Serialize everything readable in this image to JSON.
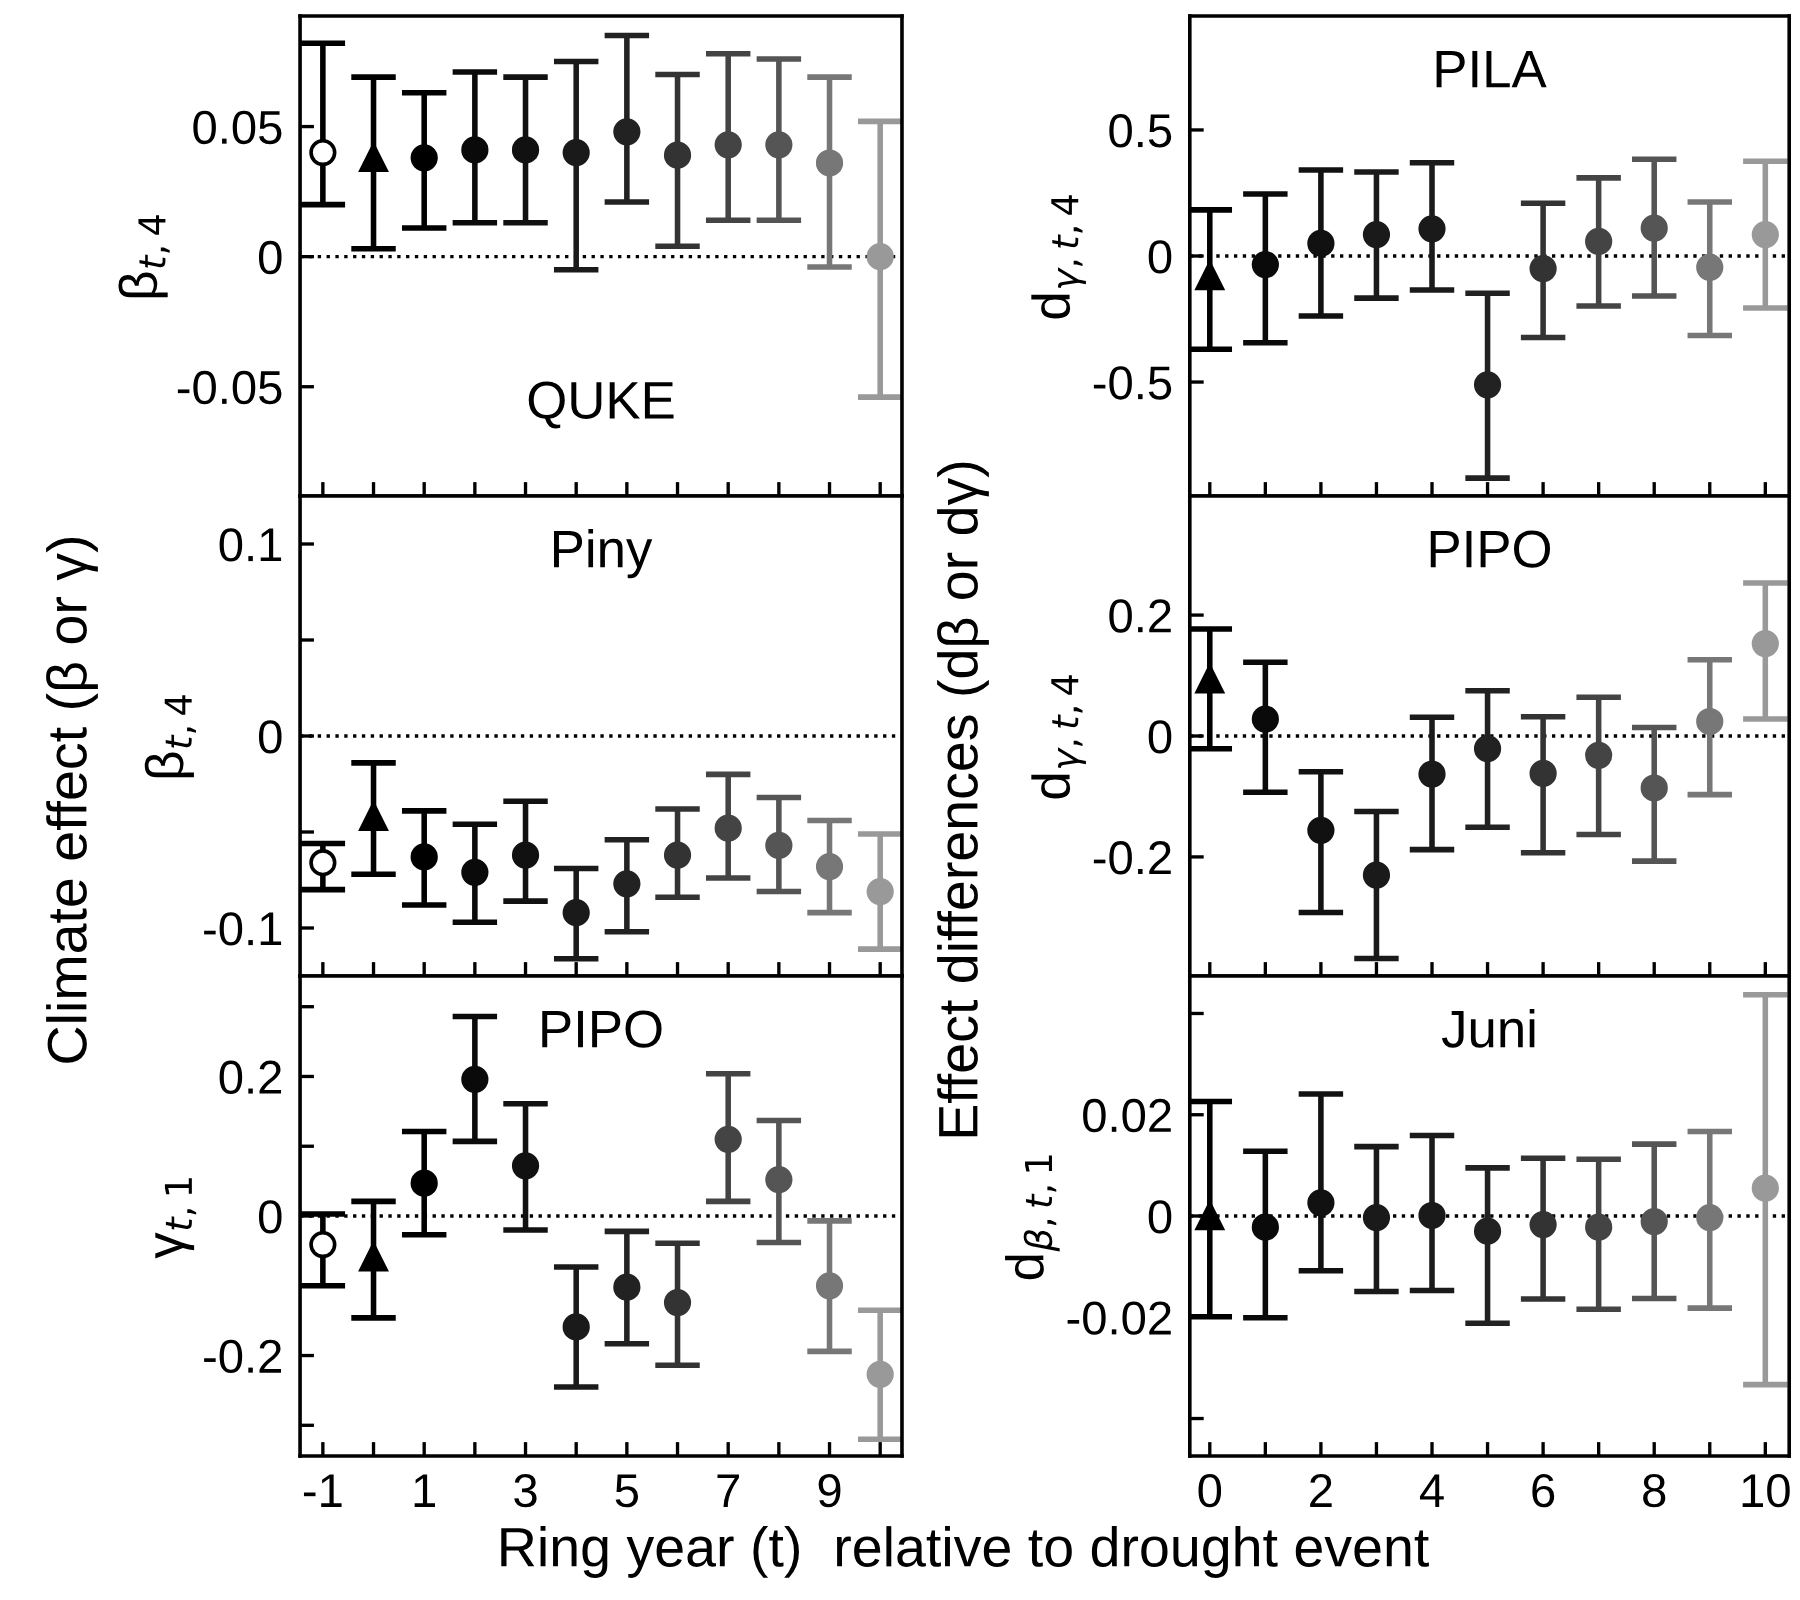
{
  "chart_data": [
    {
      "type": "scatter",
      "title": "QUKE",
      "ylabel": "β$_{t,4}$",
      "xlim": [
        -1.45,
        10.43
      ],
      "ylim": [
        -0.092,
        0.0925
      ],
      "xticks": [
        -1,
        {
          "value": 0,
          "label": null
        },
        1,
        {
          "value": 2,
          "label": null
        },
        3,
        {
          "value": 4,
          "label": null
        },
        5,
        {
          "value": 6,
          "label": null
        },
        7,
        {
          "value": 8,
          "label": null
        },
        9,
        {
          "value": 10,
          "label": null
        }
      ],
      "yticks": [
        -0.05,
        0,
        0.05
      ],
      "tick_labels": "y",
      "grid": false,
      "legend": false,
      "ref_lines": [
        {
          "axis": "y",
          "value": 0,
          "line_style": "dotted",
          "color": "#000000"
        }
      ],
      "series": [
        {
          "marker": "circle",
          "color": "#000000",
          "x": [
            -1
          ],
          "values": [
            0.04
          ],
          "errors": [
            [
              0.02,
              0.082
            ]
          ],
          "colors": [
            "#ffffff"
          ]
        },
        {
          "marker": "triangle",
          "x": [
            0
          ],
          "values": [
            0.038
          ],
          "errors": [
            [
              0.003,
              0.069
            ]
          ],
          "colors": [
            "#000000"
          ]
        },
        {
          "marker": "circle",
          "x": [
            1,
            2,
            3,
            4,
            5,
            6,
            7,
            8,
            9,
            10
          ],
          "values": [
            0.038,
            0.041,
            0.041,
            0.04,
            0.048,
            0.039,
            0.043,
            0.043,
            0.036,
            0.0
          ],
          "errors": [
            [
              0.011,
              0.063
            ],
            [
              0.013,
              0.071
            ],
            [
              0.013,
              0.069
            ],
            [
              -0.005,
              0.075
            ],
            [
              0.021,
              0.085
            ],
            [
              0.004,
              0.07
            ],
            [
              0.014,
              0.078
            ],
            [
              0.014,
              0.076
            ],
            [
              -0.004,
              0.069
            ],
            [
              -0.054,
              0.052
            ]
          ],
          "colors": [
            "#000000",
            "#0a0a0a",
            "#111111",
            "#1a1a1a",
            "#222222",
            "#333333",
            "#444444",
            "#555555",
            "#777777",
            "#999999"
          ]
        }
      ]
    },
    {
      "type": "scatter",
      "title": "Piny",
      "ylabel": "β$_{t,4}$",
      "annotations": [
        "Climate effect (β or γ)"
      ],
      "xlim": [
        -1.45,
        10.43
      ],
      "ylim": [
        -0.125,
        0.125
      ],
      "xticks": [
        -1,
        {
          "value": 0,
          "label": null
        },
        1,
        {
          "value": 2,
          "label": null
        },
        3,
        {
          "value": 4,
          "label": null
        },
        5,
        {
          "value": 6,
          "label": null
        },
        7,
        {
          "value": 8,
          "label": null
        },
        9,
        {
          "value": 10,
          "label": null
        }
      ],
      "yticks": [
        -0.1,
        {
          "value": -0.05,
          "label": null
        },
        0,
        {
          "value": 0.05,
          "label": null
        },
        0.1
      ],
      "tick_labels": "y",
      "grid": false,
      "legend": false,
      "ref_lines": [
        {
          "axis": "y",
          "value": 0,
          "line_style": "dotted",
          "color": "#000000"
        }
      ],
      "series": [
        {
          "marker": "circle",
          "color": "#000000",
          "x": [
            -1
          ],
          "values": [
            -0.066
          ],
          "errors": [
            [
              -0.08,
              -0.056
            ]
          ],
          "colors": [
            "#ffffff"
          ]
        },
        {
          "marker": "triangle",
          "x": [
            0
          ],
          "values": [
            -0.042
          ],
          "errors": [
            [
              -0.072,
              -0.014
            ]
          ],
          "colors": [
            "#000000"
          ]
        },
        {
          "marker": "circle",
          "x": [
            1,
            2,
            3,
            4,
            5,
            6,
            7,
            8,
            9,
            10
          ],
          "values": [
            -0.063,
            -0.071,
            -0.062,
            -0.092,
            -0.077,
            -0.062,
            -0.048,
            -0.057,
            -0.068,
            -0.081
          ],
          "errors": [
            [
              -0.088,
              -0.039
            ],
            [
              -0.097,
              -0.046
            ],
            [
              -0.086,
              -0.034
            ],
            [
              -0.116,
              -0.069
            ],
            [
              -0.102,
              -0.054
            ],
            [
              -0.084,
              -0.038
            ],
            [
              -0.074,
              -0.02
            ],
            [
              -0.081,
              -0.032
            ],
            [
              -0.092,
              -0.044
            ],
            [
              -0.111,
              -0.051
            ]
          ],
          "colors": [
            "#000000",
            "#0a0a0a",
            "#111111",
            "#1a1a1a",
            "#222222",
            "#333333",
            "#444444",
            "#555555",
            "#777777",
            "#999999"
          ]
        }
      ]
    },
    {
      "type": "scatter",
      "title": "PIPO",
      "ylabel": "γ$_{t,1}$",
      "xlabel": "Ring year (t)  relative to drought event",
      "xlim": [
        -1.45,
        10.43
      ],
      "ylim": [
        -0.344,
        0.344
      ],
      "xticks": [
        -1,
        {
          "value": 0,
          "label": null
        },
        1,
        {
          "value": 2,
          "label": null
        },
        3,
        {
          "value": 4,
          "label": null
        },
        5,
        {
          "value": 6,
          "label": null
        },
        7,
        {
          "value": 8,
          "label": null
        },
        9,
        {
          "value": 10,
          "label": null
        }
      ],
      "yticks": [
        {
          "value": -0.3,
          "label": null
        },
        -0.2,
        {
          "value": -0.1,
          "label": null
        },
        0,
        {
          "value": 0.1,
          "label": null
        },
        0.2,
        {
          "value": 0.3,
          "label": null
        }
      ],
      "grid": false,
      "legend": false,
      "ref_lines": [
        {
          "axis": "y",
          "value": 0,
          "line_style": "dotted",
          "color": "#000000"
        }
      ],
      "series": [
        {
          "marker": "circle",
          "color": "#000000",
          "x": [
            -1
          ],
          "values": [
            -0.041
          ],
          "errors": [
            [
              -0.1,
              0.003
            ]
          ],
          "colors": [
            "#ffffff"
          ]
        },
        {
          "marker": "triangle",
          "x": [
            0
          ],
          "values": [
            -0.059
          ],
          "errors": [
            [
              -0.146,
              0.021
            ]
          ],
          "colors": [
            "#000000"
          ]
        },
        {
          "marker": "circle",
          "x": [
            1,
            2,
            3,
            4,
            5,
            6,
            7,
            8,
            9,
            10
          ],
          "values": [
            0.047,
            0.196,
            0.072,
            -0.159,
            -0.102,
            -0.124,
            0.11,
            0.052,
            -0.1,
            -0.227
          ],
          "errors": [
            [
              -0.027,
              0.121
            ],
            [
              0.107,
              0.286
            ],
            [
              -0.02,
              0.161
            ],
            [
              -0.245,
              -0.073
            ],
            [
              -0.183,
              -0.022
            ],
            [
              -0.214,
              -0.039
            ],
            [
              0.021,
              0.204
            ],
            [
              -0.038,
              0.137
            ],
            [
              -0.194,
              -0.007
            ],
            [
              -0.32,
              -0.135
            ]
          ],
          "colors": [
            "#000000",
            "#0a0a0a",
            "#111111",
            "#1a1a1a",
            "#222222",
            "#333333",
            "#444444",
            "#555555",
            "#777777",
            "#999999"
          ]
        }
      ]
    },
    {
      "type": "scatter",
      "title": "PILA",
      "ylabel": "d$_{γ,t,4}$",
      "xlim": [
        -0.36,
        10.43
      ],
      "ylim": [
        -0.952,
        0.952
      ],
      "xticks": [
        0,
        {
          "value": 1,
          "label": null
        },
        2,
        {
          "value": 3,
          "label": null
        },
        4,
        {
          "value": 5,
          "label": null
        },
        6,
        {
          "value": 7,
          "label": null
        },
        8,
        {
          "value": 9,
          "label": null
        },
        10
      ],
      "yticks": [
        -0.5,
        0,
        0.5
      ],
      "tick_labels": "y",
      "grid": false,
      "legend": false,
      "ref_lines": [
        {
          "axis": "y",
          "value": 0,
          "line_style": "dotted",
          "color": "#000000"
        }
      ],
      "series": [
        {
          "marker": "triangle",
          "x": [
            0
          ],
          "values": [
            -0.079
          ],
          "errors": [
            [
              -0.37,
              0.183
            ]
          ],
          "colors": [
            "#000000"
          ]
        },
        {
          "marker": "circle",
          "x": [
            1,
            2,
            3,
            4,
            5,
            6,
            7,
            8,
            9,
            10
          ],
          "values": [
            -0.034,
            0.05,
            0.085,
            0.108,
            -0.511,
            -0.05,
            0.058,
            0.111,
            -0.045,
            0.085
          ],
          "errors": [
            [
              -0.344,
              0.246
            ],
            [
              -0.238,
              0.341
            ],
            [
              -0.167,
              0.333
            ],
            [
              -0.135,
              0.37
            ],
            [
              -0.881,
              -0.148
            ],
            [
              -0.323,
              0.209
            ],
            [
              -0.198,
              0.31
            ],
            [
              -0.159,
              0.384
            ],
            [
              -0.315,
              0.214
            ],
            [
              -0.206,
              0.376
            ]
          ],
          "colors": [
            "#0a0a0a",
            "#111111",
            "#1a1a1a",
            "#1a1a1a",
            "#222222",
            "#333333",
            "#444444",
            "#555555",
            "#777777",
            "#999999"
          ]
        }
      ]
    },
    {
      "type": "scatter",
      "title": "PIPO",
      "ylabel": "d$_{γ,t,4}$",
      "annotations": [
        "Effect differences (dβ or dγ)"
      ],
      "xlim": [
        -0.36,
        10.43
      ],
      "ylim": [
        -0.397,
        0.397
      ],
      "xticks": [
        0,
        {
          "value": 1,
          "label": null
        },
        2,
        {
          "value": 3,
          "label": null
        },
        4,
        {
          "value": 5,
          "label": null
        },
        6,
        {
          "value": 7,
          "label": null
        },
        8,
        {
          "value": 9,
          "label": null
        },
        10
      ],
      "yticks": [
        -0.2,
        0,
        0.2
      ],
      "tick_labels": "y",
      "grid": false,
      "legend": false,
      "ref_lines": [
        {
          "axis": "y",
          "value": 0,
          "line_style": "dotted",
          "color": "#000000"
        }
      ],
      "series": [
        {
          "marker": "triangle",
          "x": [
            0
          ],
          "values": [
            0.094
          ],
          "errors": [
            [
              -0.021,
              0.177
            ]
          ],
          "colors": [
            "#000000"
          ]
        },
        {
          "marker": "circle",
          "x": [
            1,
            2,
            3,
            4,
            5,
            6,
            7,
            8,
            9,
            10
          ],
          "values": [
            0.028,
            -0.156,
            -0.23,
            -0.063,
            -0.021,
            -0.062,
            -0.032,
            -0.086,
            0.024,
            0.153
          ],
          "errors": [
            [
              -0.093,
              0.122
            ],
            [
              -0.292,
              -0.059
            ],
            [
              -0.368,
              -0.125
            ],
            [
              -0.188,
              0.031
            ],
            [
              -0.151,
              0.075
            ],
            [
              -0.193,
              0.032
            ],
            [
              -0.163,
              0.064
            ],
            [
              -0.207,
              0.014
            ],
            [
              -0.097,
              0.126
            ],
            [
              0.028,
              0.253
            ]
          ],
          "colors": [
            "#0a0a0a",
            "#111111",
            "#1a1a1a",
            "#1a1a1a",
            "#222222",
            "#333333",
            "#444444",
            "#555555",
            "#777777",
            "#999999"
          ]
        }
      ]
    },
    {
      "type": "scatter",
      "title": "Juni",
      "ylabel": "d$_{β,t,1}$",
      "xlim": [
        -0.36,
        10.43
      ],
      "ylim": [
        -0.0474,
        0.0474
      ],
      "xticks": [
        0,
        {
          "value": 1,
          "label": null
        },
        2,
        {
          "value": 3,
          "label": null
        },
        4,
        {
          "value": 5,
          "label": null
        },
        6,
        {
          "value": 7,
          "label": null
        },
        8,
        {
          "value": 9,
          "label": null
        },
        10
      ],
      "yticks": [
        {
          "value": -0.04,
          "label": null
        },
        -0.02,
        0,
        0.02,
        {
          "value": 0.04,
          "label": null
        }
      ],
      "grid": false,
      "legend": false,
      "ref_lines": [
        {
          "axis": "y",
          "value": 0,
          "line_style": "dotted",
          "color": "#000000"
        }
      ],
      "series": [
        {
          "marker": "triangle",
          "x": [
            0
          ],
          "values": [
            0.0
          ],
          "errors": [
            [
              -0.0199,
              0.0226
            ]
          ],
          "colors": [
            "#000000"
          ]
        },
        {
          "marker": "circle",
          "x": [
            1,
            2,
            3,
            4,
            5,
            6,
            7,
            8,
            9,
            10
          ],
          "values": [
            -0.0022,
            0.0026,
            -0.0003,
            0.0001,
            -0.003,
            -0.0017,
            -0.0022,
            -0.0011,
            -0.0003,
            0.0055
          ],
          "errors": [
            [
              -0.0201,
              0.0128
            ],
            [
              -0.0108,
              0.0241
            ],
            [
              -0.0149,
              0.0137
            ],
            [
              -0.0147,
              0.0159
            ],
            [
              -0.0212,
              0.0095
            ],
            [
              -0.0164,
              0.0114
            ],
            [
              -0.0184,
              0.0112
            ],
            [
              -0.0163,
              0.0142
            ],
            [
              -0.0182,
              0.0167
            ],
            [
              -0.0333,
              0.0437
            ]
          ],
          "colors": [
            "#0a0a0a",
            "#111111",
            "#1a1a1a",
            "#1a1a1a",
            "#222222",
            "#333333",
            "#444444",
            "#555555",
            "#777777",
            "#999999"
          ]
        }
      ]
    }
  ]
}
